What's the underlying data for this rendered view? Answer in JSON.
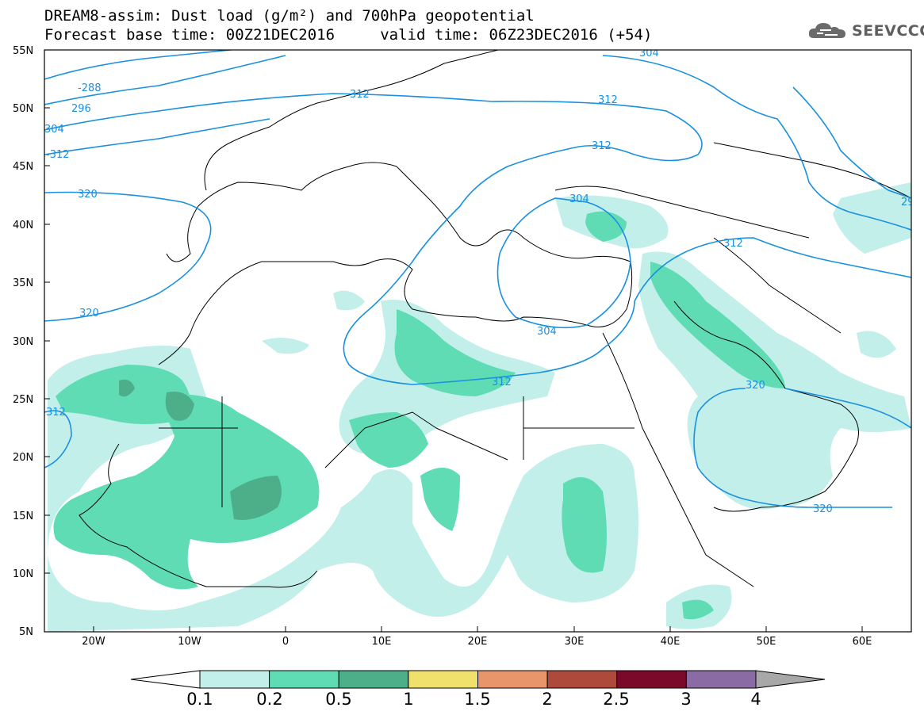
{
  "header": {
    "line1": "DREAM8-assim: Dust load (g/m²) and 700hPa geopotential",
    "line2": "Forecast base time: 00Z21DEC2016     valid time: 06Z23DEC2016 (+54)"
  },
  "logo": {
    "text": "SEEVCCC",
    "icon": "cloud-icon"
  },
  "map": {
    "lat_labels": [
      "55N",
      "50N",
      "45N",
      "40N",
      "35N",
      "30N",
      "25N",
      "20N",
      "15N",
      "10N",
      "5N"
    ],
    "lon_labels": [
      "20W",
      "10W",
      "0",
      "10E",
      "20E",
      "30E",
      "40E",
      "50E",
      "60E"
    ],
    "contour_labels": [
      "304",
      "-288",
      "296",
      "312",
      "304",
      "-312",
      "320",
      "312",
      "312",
      "304",
      "312",
      "29",
      "320",
      "304",
      "312",
      "320",
      "312",
      "320"
    ],
    "colors": {
      "contour": "#1a90e0",
      "dust_01": "#c2efea",
      "dust_02": "#5fdcb4",
      "dust_05": "#4dae8a"
    }
  },
  "colorbar": {
    "labels": [
      "0.1",
      "0.2",
      "0.5",
      "1",
      "1.5",
      "2",
      "2.5",
      "3",
      "4"
    ],
    "colors": [
      "#c2efea",
      "#5fdcb4",
      "#4dae8a",
      "#f0e06c",
      "#e9956c",
      "#ad4a3c",
      "#7b0a2a",
      "#8a6ba3"
    ],
    "over_color": "#a8a8a8",
    "under_color": "#ffffff"
  }
}
